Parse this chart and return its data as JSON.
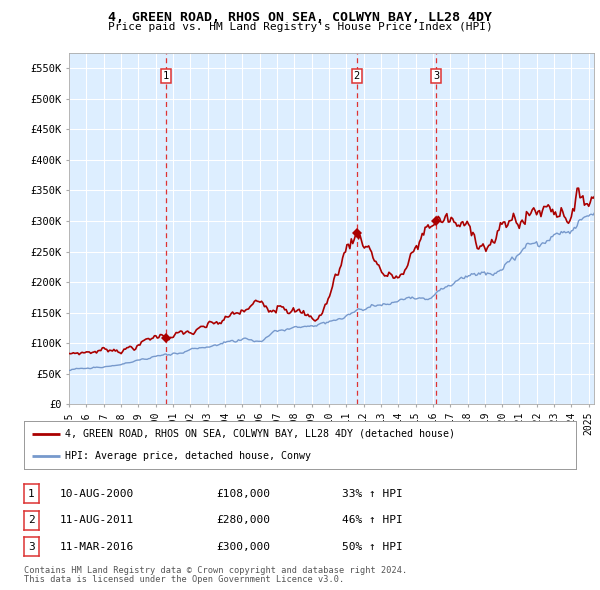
{
  "title": "4, GREEN ROAD, RHOS ON SEA, COLWYN BAY, LL28 4DY",
  "subtitle": "Price paid vs. HM Land Registry's House Price Index (HPI)",
  "ylabel_ticks": [
    "£0",
    "£50K",
    "£100K",
    "£150K",
    "£200K",
    "£250K",
    "£300K",
    "£350K",
    "£400K",
    "£450K",
    "£500K",
    "£550K"
  ],
  "ytick_values": [
    0,
    50000,
    100000,
    150000,
    200000,
    250000,
    300000,
    350000,
    400000,
    450000,
    500000,
    550000
  ],
  "ylim": [
    0,
    575000
  ],
  "xlim_start": 1995.3,
  "xlim_end": 2025.3,
  "xlabel_years": [
    1995,
    1996,
    1997,
    1998,
    1999,
    2000,
    2001,
    2002,
    2003,
    2004,
    2005,
    2006,
    2007,
    2008,
    2009,
    2010,
    2011,
    2012,
    2013,
    2014,
    2015,
    2016,
    2017,
    2018,
    2019,
    2020,
    2021,
    2022,
    2023,
    2024,
    2025
  ],
  "sale_dates": [
    2000.61,
    2011.61,
    2016.19
  ],
  "sale_prices": [
    108000,
    280000,
    300000
  ],
  "sale_labels": [
    "1",
    "2",
    "3"
  ],
  "vline_color": "#dd3333",
  "red_line_color": "#aa0000",
  "blue_line_color": "#7799cc",
  "chart_bg_color": "#ddeeff",
  "background_color": "#ffffff",
  "grid_color": "#ffffff",
  "legend_label_red": "4, GREEN ROAD, RHOS ON SEA, COLWYN BAY, LL28 4DY (detached house)",
  "legend_label_blue": "HPI: Average price, detached house, Conwy",
  "table_rows": [
    {
      "num": "1",
      "date": "10-AUG-2000",
      "price": "£108,000",
      "pct": "33% ↑ HPI"
    },
    {
      "num": "2",
      "date": "11-AUG-2011",
      "price": "£280,000",
      "pct": "46% ↑ HPI"
    },
    {
      "num": "3",
      "date": "11-MAR-2016",
      "price": "£300,000",
      "pct": "50% ↑ HPI"
    }
  ],
  "footnote1": "Contains HM Land Registry data © Crown copyright and database right 2024.",
  "footnote2": "This data is licensed under the Open Government Licence v3.0."
}
